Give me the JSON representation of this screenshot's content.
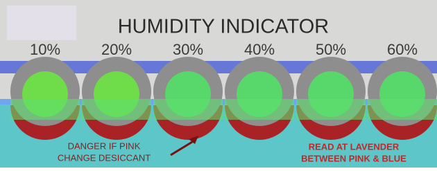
{
  "title": "HUMIDITY INDICATOR",
  "spots": [
    "10%",
    "20%",
    "30%",
    "40%",
    "50%",
    "60%"
  ],
  "notes": {
    "danger": [
      "DANGER IF PINK",
      "CHANGE DESICCANT"
    ],
    "read": [
      "READ AT LAVENDER",
      "BETWEEN PINK & BLUE"
    ]
  }
}
